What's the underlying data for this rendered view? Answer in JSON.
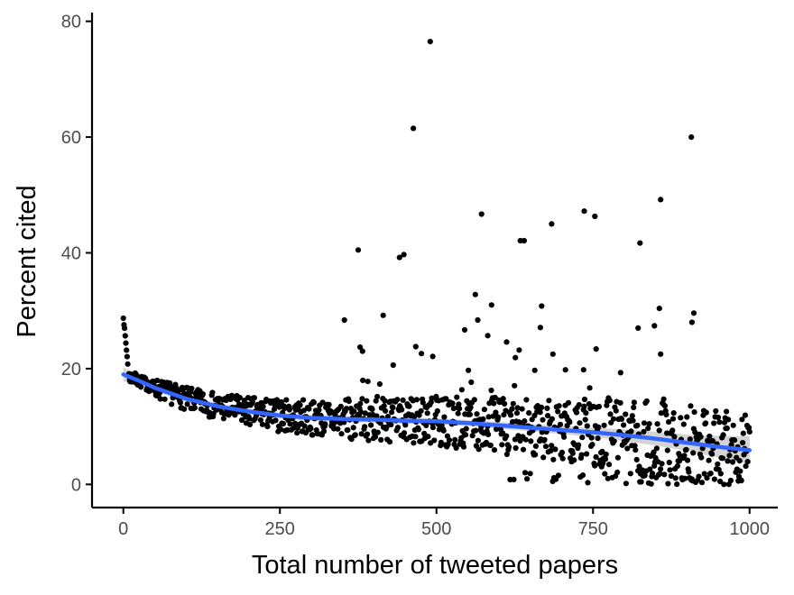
{
  "chart_data": {
    "type": "scatter",
    "title": "",
    "xlabel": "Total number of tweeted papers",
    "ylabel": "Percent cited",
    "xlim": [
      -50,
      1045
    ],
    "ylim": [
      -4,
      81.5
    ],
    "xticks": [
      0,
      250,
      500,
      750,
      1000
    ],
    "xtick_labels": [
      "0",
      "250",
      "500",
      "750",
      "1000"
    ],
    "yticks": [
      0,
      20,
      40,
      60,
      80
    ],
    "ytick_labels": [
      "0",
      "20",
      "40",
      "60",
      "80"
    ],
    "grid": false,
    "legend": "none",
    "point_color": "#000000",
    "trend_color": "#3366ff",
    "band_color": "#999999",
    "outliers": [
      {
        "x": 490,
        "y": 76.5
      },
      {
        "x": 463,
        "y": 61.5
      },
      {
        "x": 907,
        "y": 60.0
      },
      {
        "x": 858,
        "y": 49.2
      },
      {
        "x": 736,
        "y": 47.2
      },
      {
        "x": 572,
        "y": 46.7
      },
      {
        "x": 753,
        "y": 46.3
      },
      {
        "x": 684,
        "y": 45.0
      },
      {
        "x": 634,
        "y": 42.1
      },
      {
        "x": 640,
        "y": 42.1
      },
      {
        "x": 825,
        "y": 41.7
      },
      {
        "x": 375,
        "y": 40.5
      },
      {
        "x": 448,
        "y": 39.7
      },
      {
        "x": 441,
        "y": 39.2
      },
      {
        "x": 562,
        "y": 32.8
      },
      {
        "x": 588,
        "y": 31.0
      },
      {
        "x": 668,
        "y": 30.8
      },
      {
        "x": 856,
        "y": 30.4
      },
      {
        "x": 911,
        "y": 29.6
      },
      {
        "x": 415,
        "y": 29.2
      },
      {
        "x": 353,
        "y": 28.4
      },
      {
        "x": 566,
        "y": 28.4
      },
      {
        "x": 908,
        "y": 28.0
      },
      {
        "x": 666,
        "y": 27.1
      },
      {
        "x": 848,
        "y": 27.4
      },
      {
        "x": 822,
        "y": 27.0
      },
      {
        "x": 545,
        "y": 26.7
      },
      {
        "x": 582,
        "y": 25.7
      },
      {
        "x": 612,
        "y": 24.6
      },
      {
        "x": 755,
        "y": 23.4
      },
      {
        "x": 467,
        "y": 23.8
      },
      {
        "x": 378,
        "y": 23.7
      },
      {
        "x": 382,
        "y": 23.0
      },
      {
        "x": 632,
        "y": 23.2
      },
      {
        "x": 858,
        "y": 22.5
      },
      {
        "x": 476,
        "y": 22.6
      },
      {
        "x": 686,
        "y": 22.5
      },
      {
        "x": 494,
        "y": 22.1
      },
      {
        "x": 626,
        "y": 21.9
      },
      {
        "x": 706,
        "y": 19.8
      },
      {
        "x": 735,
        "y": 19.8
      },
      {
        "x": 794,
        "y": 19.3
      },
      {
        "x": 551,
        "y": 19.7
      },
      {
        "x": 431,
        "y": 20.6
      },
      {
        "x": 657,
        "y": 19.7
      }
    ],
    "dense_cloud": {
      "n_points": 1000,
      "x_range": [
        0,
        1000
      ],
      "approximate_y_range": [
        0,
        29
      ],
      "random_seed": 7
    },
    "trend_line": {
      "method": "loess",
      "x": [
        0,
        25,
        50,
        100,
        150,
        200,
        250,
        300,
        350,
        400,
        450,
        500,
        550,
        600,
        650,
        700,
        750,
        800,
        850,
        900,
        950,
        1000
      ],
      "y": [
        19.0,
        17.9,
        16.7,
        14.8,
        13.5,
        12.6,
        11.9,
        11.5,
        11.3,
        11.2,
        11.0,
        10.9,
        10.6,
        10.2,
        9.8,
        9.4,
        9.0,
        8.5,
        7.9,
        7.2,
        6.5,
        5.9
      ],
      "ci_low": [
        17.8,
        17.1,
        16.1,
        14.3,
        13.0,
        12.1,
        11.4,
        11.0,
        10.8,
        10.7,
        10.5,
        10.4,
        10.1,
        9.6,
        9.2,
        8.7,
        8.2,
        7.5,
        6.7,
        5.8,
        4.6,
        3.5
      ],
      "ci_high": [
        20.2,
        18.7,
        17.3,
        15.3,
        14.0,
        13.1,
        12.4,
        12.0,
        11.8,
        11.7,
        11.5,
        11.4,
        11.1,
        10.8,
        10.4,
        10.1,
        9.8,
        9.5,
        9.1,
        8.6,
        8.4,
        8.3
      ]
    }
  }
}
